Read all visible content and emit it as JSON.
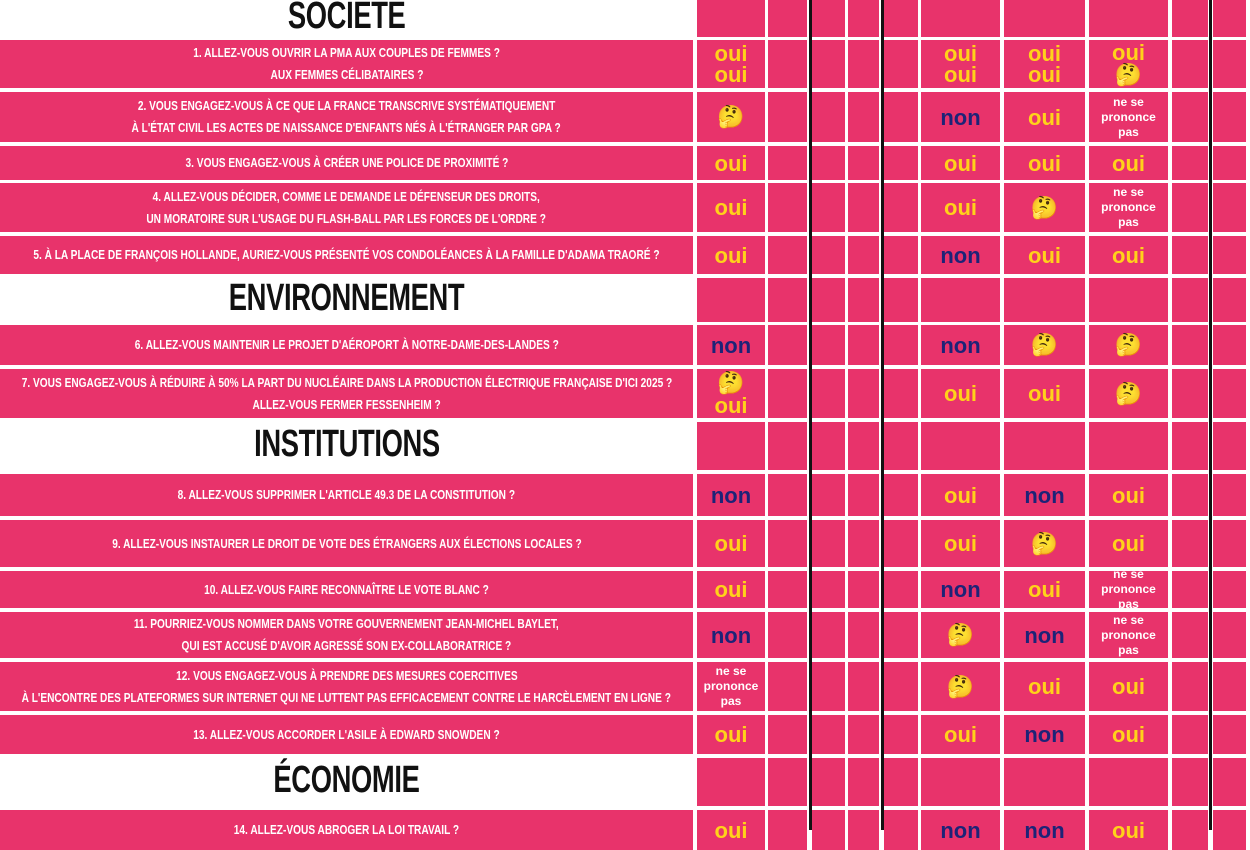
{
  "sections": [
    {
      "title": "SOCIÉTÉ",
      "questions": [
        {
          "text": [
            "1. ALLEZ-VOUS OUVRIR LA PMA AUX COUPLES DE FEMMES ?",
            "AUX FEMMES CÉLIBATAIRES ?"
          ],
          "answers": [
            [
              "oui",
              "oui"
            ],
            [
              "oui",
              "oui"
            ],
            [
              "oui",
              "oui"
            ],
            [
              "oui",
              "🤔"
            ]
          ]
        },
        {
          "text": [
            "2. VOUS ENGAGEZ-VOUS À CE QUE LA FRANCE TRANSCRIVE SYSTÉMATIQUEMENT",
            "À L'ÉTAT CIVIL LES ACTES DE NAISSANCE D'ENFANTS NÉS À L'ÉTRANGER PAR GPA ?"
          ],
          "answers": [
            [
              "🤔"
            ],
            [
              "non"
            ],
            [
              "oui"
            ],
            [
              "ne se",
              "prononce",
              "pas"
            ]
          ]
        },
        {
          "text": [
            "3. VOUS ENGAGEZ-VOUS À CRÉER UNE POLICE DE PROXIMITÉ ?"
          ],
          "answers": [
            [
              "oui"
            ],
            [
              "oui"
            ],
            [
              "oui"
            ],
            [
              "oui"
            ]
          ]
        },
        {
          "text": [
            "4. ALLEZ-VOUS DÉCIDER, COMME LE DEMANDE LE DÉFENSEUR DES DROITS,",
            "UN MORATOIRE SUR L'USAGE DU FLASH-BALL PAR LES FORCES DE L'ORDRE ?"
          ],
          "answers": [
            [
              "oui"
            ],
            [
              "oui"
            ],
            [
              "🤔"
            ],
            [
              "ne se",
              "prononce",
              "pas"
            ]
          ]
        },
        {
          "text": [
            "5. À LA PLACE DE FRANÇOIS HOLLANDE, AURIEZ-VOUS PRÉSENTÉ VOS CONDOLÉANCES À LA FAMILLE D'ADAMA TRAORÉ ?"
          ],
          "answers": [
            [
              "oui"
            ],
            [
              "non"
            ],
            [
              "oui"
            ],
            [
              "oui"
            ]
          ]
        }
      ]
    },
    {
      "title": "ENVIRONNEMENT",
      "questions": [
        {
          "text": [
            "6. ALLEZ-VOUS MAINTENIR LE PROJET D'AÉROPORT À NOTRE-DAME-DES-LANDES ?"
          ],
          "answers": [
            [
              "non"
            ],
            [
              "non"
            ],
            [
              "🤔"
            ],
            [
              "🤔"
            ]
          ]
        },
        {
          "text": [
            "7. VOUS ENGAGEZ-VOUS À RÉDUIRE À 50% LA PART DU NUCLÉAIRE DANS LA PRODUCTION ÉLECTRIQUE FRANÇAISE D'ICI 2025 ?",
            "ALLEZ-VOUS FERMER FESSENHEIM ?"
          ],
          "answers": [
            [
              "🤔",
              "oui"
            ],
            [
              "oui"
            ],
            [
              "oui"
            ],
            [
              "🤔"
            ]
          ]
        }
      ]
    },
    {
      "title": "INSTITUTIONS",
      "questions": [
        {
          "text": [
            "8.  ALLEZ-VOUS SUPPRIMER L'ARTICLE 49.3 DE LA CONSTITUTION ?"
          ],
          "answers": [
            [
              "non"
            ],
            [
              "oui"
            ],
            [
              "non"
            ],
            [
              "oui"
            ]
          ]
        },
        {
          "text": [
            "9. ALLEZ-VOUS INSTAURER LE DROIT DE VOTE DES ÉTRANGERS AUX ÉLECTIONS LOCALES ?"
          ],
          "answers": [
            [
              "oui"
            ],
            [
              "oui"
            ],
            [
              "🤔"
            ],
            [
              "oui"
            ]
          ]
        },
        {
          "text": [
            "10. ALLEZ-VOUS FAIRE RECONNAÎTRE LE VOTE BLANC ?"
          ],
          "answers": [
            [
              "oui"
            ],
            [
              "non"
            ],
            [
              "oui"
            ],
            [
              "ne se",
              "prononce",
              "pas"
            ]
          ]
        },
        {
          "text": [
            "11. POURRIEZ-VOUS NOMMER DANS VOTRE GOUVERNEMENT JEAN-MICHEL BAYLET,",
            "QUI EST ACCUSÉ D'AVOIR AGRESSÉ SON EX-COLLABORATRICE ?"
          ],
          "answers": [
            [
              "non"
            ],
            [
              "🤔"
            ],
            [
              "non"
            ],
            [
              "ne se",
              "prononce",
              "pas"
            ]
          ]
        },
        {
          "text": [
            "12. VOUS ENGAGEZ-VOUS À PRENDRE DES MESURES COERCITIVES",
            "À L'ENCONTRE DES PLATEFORMES SUR INTERNET QUI NE LUTTENT PAS EFFICACEMENT CONTRE LE HARCÈLEMENT EN LIGNE ?"
          ],
          "answers": [
            [
              "ne se",
              "prononce",
              "pas"
            ],
            [
              "🤔"
            ],
            [
              "oui"
            ],
            [
              "oui"
            ]
          ]
        },
        {
          "text": [
            "13. ALLEZ-VOUS ACCORDER L'ASILE À EDWARD SNOWDEN ?"
          ],
          "answers": [
            [
              "oui"
            ],
            [
              "oui"
            ],
            [
              "non"
            ],
            [
              "oui"
            ]
          ]
        }
      ]
    },
    {
      "title": "ÉCONOMIE",
      "questions": [
        {
          "text": [
            "14. ALLEZ-VOUS ABROGER LA LOI TRAVAIL ?"
          ],
          "answers": [
            [
              "oui"
            ],
            [
              "non"
            ],
            [
              "non"
            ],
            [
              "oui"
            ]
          ]
        }
      ]
    }
  ]
}
